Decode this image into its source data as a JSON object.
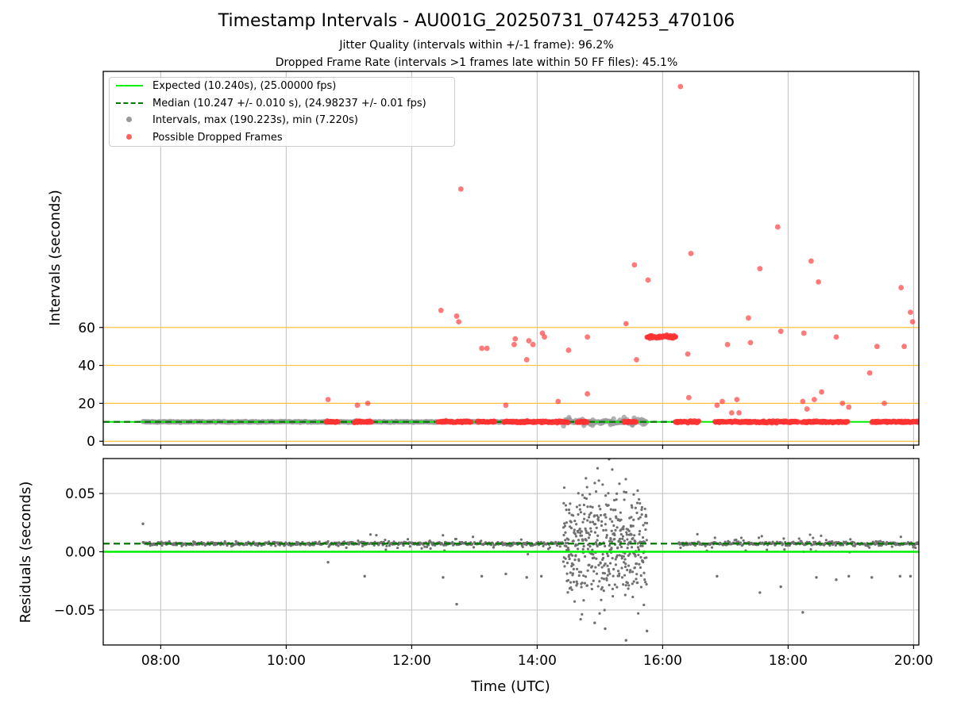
{
  "title": "Timestamp Intervals - AU001G_20250731_074253_470106",
  "subtitle_jitter": "Jitter Quality (intervals within +/-1 frame): 96.2%",
  "subtitle_dropped": "Dropped Frame Rate (intervals >1 frames late within 50 FF files): 45.1%",
  "legend": {
    "expected": "Expected (10.240s), (25.00000 fps)",
    "median": "Median (10.247 +/- 0.010 s), (24.98237 +/- 0.01 fps)",
    "intervals": "Intervals, max (190.223s), min (7.220s)",
    "dropped": "Possible Dropped Frames"
  },
  "colors": {
    "expected": "#00ee00",
    "median": "#007700",
    "intervals": "#999999",
    "dropped": "#ff3333",
    "threshold": "#ffc040",
    "residual_points": "#707070",
    "grid": "#c8c8c8"
  },
  "chart_data": [
    {
      "type": "scatter",
      "panel": "intervals",
      "ylabel": "Intervals (seconds)",
      "yticks": [
        0,
        20,
        40,
        60
      ],
      "ylim": [
        -2,
        195
      ],
      "xlim": [
        "07:05",
        "20:05"
      ],
      "grid": "vertical",
      "legend_position": "top-left",
      "reference_lines": {
        "expected": 10.24,
        "median": 10.247,
        "horizontal_thresholds": [
          0,
          20,
          40,
          60
        ]
      },
      "normal_intervals_span": {
        "start": "07:43",
        "end": "15:45",
        "value": 10.24
      },
      "series_dropped_frames": [
        [
          "10:40",
          22
        ],
        [
          "11:08",
          19
        ],
        [
          "11:18",
          20
        ],
        [
          "12:28",
          69
        ],
        [
          "12:43",
          66
        ],
        [
          "12:45",
          63
        ],
        [
          "12:47",
          133
        ],
        [
          "13:07",
          49
        ],
        [
          "13:12",
          49
        ],
        [
          "13:30",
          19
        ],
        [
          "13:38",
          51
        ],
        [
          "13:39",
          54
        ],
        [
          "13:50",
          43
        ],
        [
          "13:52",
          53
        ],
        [
          "13:56",
          51
        ],
        [
          "14:05",
          57
        ],
        [
          "14:07",
          55
        ],
        [
          "14:20",
          21
        ],
        [
          "14:30",
          48
        ],
        [
          "14:48",
          55
        ],
        [
          "14:48",
          25
        ],
        [
          "15:25",
          62
        ],
        [
          "15:33",
          93
        ],
        [
          "15:35",
          43
        ],
        [
          "15:46",
          85
        ],
        [
          "16:04",
          56
        ],
        [
          "16:11",
          55
        ],
        [
          "16:17",
          187
        ],
        [
          "16:24",
          46
        ],
        [
          "16:25",
          23
        ],
        [
          "16:27",
          99
        ],
        [
          "16:52",
          19
        ],
        [
          "16:57",
          21
        ],
        [
          "17:02",
          51
        ],
        [
          "17:06",
          15
        ],
        [
          "17:11",
          22
        ],
        [
          "17:13",
          15
        ],
        [
          "17:22",
          65
        ],
        [
          "17:24",
          52
        ],
        [
          "17:33",
          91
        ],
        [
          "17:50",
          113
        ],
        [
          "17:53",
          58
        ],
        [
          "18:14",
          21
        ],
        [
          "18:15",
          57
        ],
        [
          "18:18",
          17
        ],
        [
          "18:22",
          95
        ],
        [
          "18:25",
          22
        ],
        [
          "18:29",
          84
        ],
        [
          "18:32",
          26
        ],
        [
          "18:46",
          55
        ],
        [
          "18:52",
          20
        ],
        [
          "18:58",
          18
        ],
        [
          "19:18",
          36
        ],
        [
          "19:25",
          50
        ],
        [
          "19:32",
          20
        ],
        [
          "19:48",
          81
        ],
        [
          "19:51",
          50
        ],
        [
          "19:57",
          68
        ],
        [
          "19:59",
          63
        ]
      ],
      "dropped_plateau": {
        "start": "15:45",
        "end": "16:13",
        "value": 55
      }
    },
    {
      "type": "scatter",
      "panel": "residuals",
      "xlabel": "Time (UTC)",
      "ylabel": "Residuals (seconds)",
      "xticks": [
        "08:00",
        "10:00",
        "12:00",
        "14:00",
        "16:00",
        "18:00",
        "20:00"
      ],
      "yticks": [
        -0.05,
        0.0,
        0.05
      ],
      "ytick_labels": [
        "−0.05",
        "0.00",
        "0.05"
      ],
      "ylim": [
        -0.08,
        0.08
      ],
      "xlim": [
        "07:05",
        "20:05"
      ],
      "grid": "both",
      "reference_lines": {
        "expected": 0.0,
        "median": 0.007
      },
      "residual_clusters": [
        {
          "start": "07:43",
          "end": "10:40",
          "center": 0.007,
          "spread": 0.001
        },
        {
          "start": "10:40",
          "end": "14:25",
          "center": 0.007,
          "spread": 0.004
        },
        {
          "start": "14:25",
          "end": "15:45",
          "center": 0.008,
          "spread": 0.025
        },
        {
          "start": "16:15",
          "end": "20:05",
          "center": 0.007,
          "spread": 0.004
        }
      ],
      "outliers": [
        [
          "07:43",
          0.024
        ],
        [
          "10:40",
          -0.009
        ],
        [
          "11:15",
          -0.021
        ],
        [
          "12:30",
          -0.022
        ],
        [
          "12:43",
          -0.045
        ],
        [
          "13:07",
          -0.021
        ],
        [
          "13:30",
          -0.019
        ],
        [
          "13:50",
          -0.022
        ],
        [
          "14:04",
          -0.021
        ],
        [
          "14:55",
          -0.061
        ],
        [
          "15:05",
          -0.066
        ],
        [
          "15:25",
          -0.076
        ],
        [
          "15:45",
          -0.068
        ],
        [
          "16:52",
          -0.021
        ],
        [
          "17:33",
          -0.035
        ],
        [
          "17:53",
          -0.03
        ],
        [
          "18:14",
          -0.052
        ],
        [
          "18:27",
          -0.022
        ],
        [
          "18:46",
          -0.024
        ],
        [
          "18:58",
          -0.021
        ],
        [
          "19:20",
          -0.022
        ],
        [
          "19:47",
          -0.021
        ],
        [
          "19:57",
          -0.021
        ]
      ]
    }
  ]
}
